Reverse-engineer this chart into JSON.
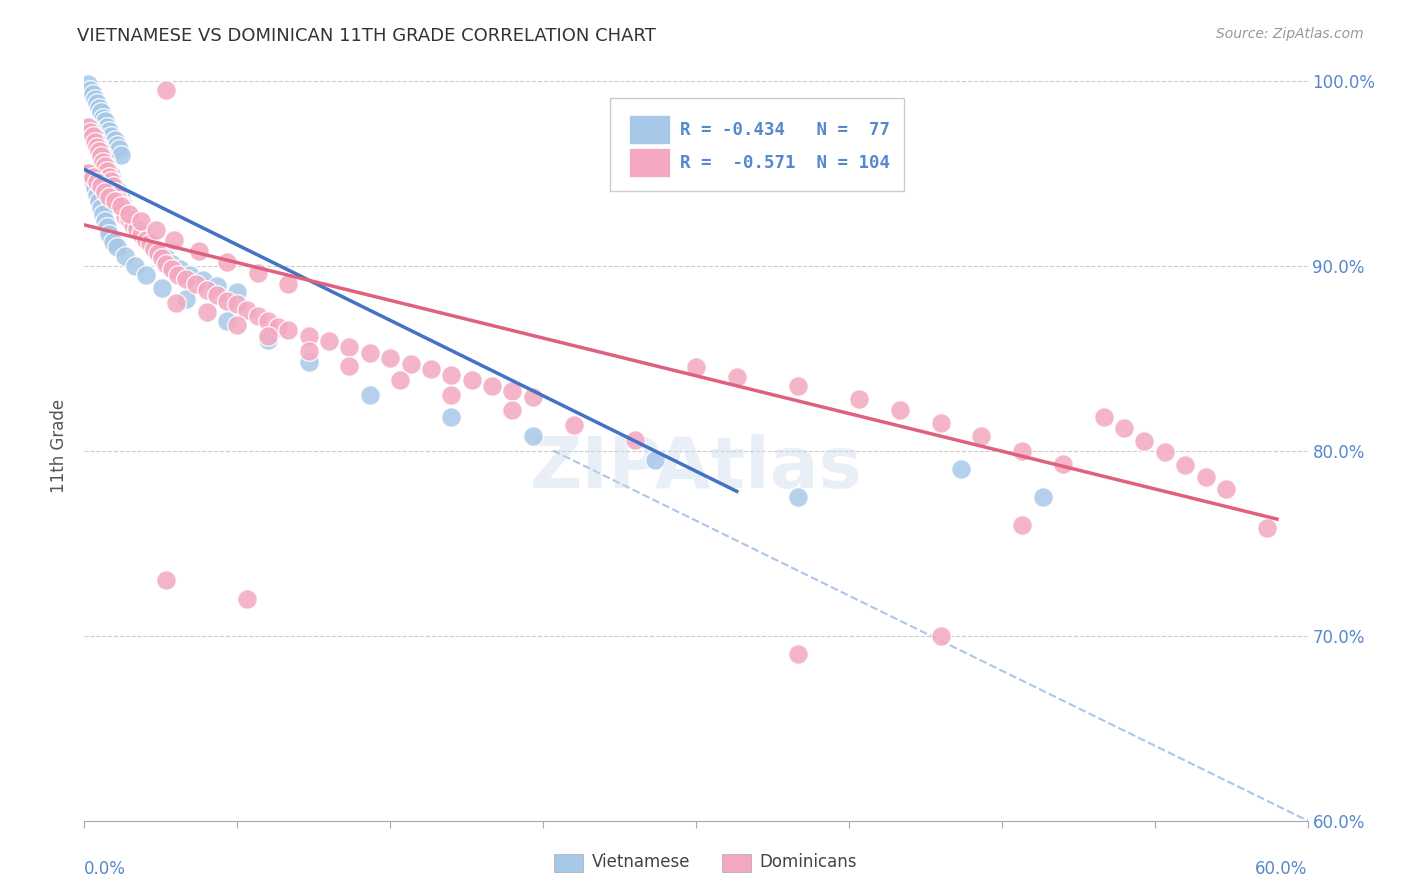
{
  "title": "VIETNAMESE VS DOMINICAN 11TH GRADE CORRELATION CHART",
  "source": "Source: ZipAtlas.com",
  "ylabel": "11th Grade",
  "xmin": 0.0,
  "xmax": 0.6,
  "ymin": 0.6,
  "ymax": 1.005,
  "legend_r_blue": "R = -0.434",
  "legend_n_blue": "N =  77",
  "legend_r_pink": "R =  -0.571",
  "legend_n_pink": "N = 104",
  "blue_color": "#A8C8E8",
  "pink_color": "#F4A8C0",
  "blue_line_color": "#4472C4",
  "pink_line_color": "#E06080",
  "blue_scatter": [
    [
      0.002,
      0.998
    ],
    [
      0.003,
      0.995
    ],
    [
      0.004,
      0.993
    ],
    [
      0.005,
      0.99
    ],
    [
      0.006,
      0.988
    ],
    [
      0.007,
      0.985
    ],
    [
      0.008,
      0.983
    ],
    [
      0.009,
      0.98
    ],
    [
      0.01,
      0.978
    ],
    [
      0.011,
      0.975
    ],
    [
      0.012,
      0.973
    ],
    [
      0.013,
      0.97
    ],
    [
      0.015,
      0.968
    ],
    [
      0.016,
      0.965
    ],
    [
      0.017,
      0.963
    ],
    [
      0.018,
      0.96
    ],
    [
      0.003,
      0.975
    ],
    [
      0.004,
      0.972
    ],
    [
      0.005,
      0.97
    ],
    [
      0.006,
      0.967
    ],
    [
      0.007,
      0.964
    ],
    [
      0.008,
      0.962
    ],
    [
      0.009,
      0.959
    ],
    [
      0.01,
      0.957
    ],
    [
      0.011,
      0.954
    ],
    [
      0.012,
      0.951
    ],
    [
      0.013,
      0.949
    ],
    [
      0.014,
      0.946
    ],
    [
      0.015,
      0.943
    ],
    [
      0.016,
      0.941
    ],
    [
      0.017,
      0.938
    ],
    [
      0.018,
      0.936
    ],
    [
      0.019,
      0.933
    ],
    [
      0.02,
      0.93
    ],
    [
      0.022,
      0.928
    ],
    [
      0.023,
      0.925
    ],
    [
      0.025,
      0.922
    ],
    [
      0.027,
      0.92
    ],
    [
      0.029,
      0.917
    ],
    [
      0.031,
      0.914
    ],
    [
      0.033,
      0.912
    ],
    [
      0.035,
      0.909
    ],
    [
      0.037,
      0.906
    ],
    [
      0.04,
      0.904
    ],
    [
      0.043,
      0.901
    ],
    [
      0.047,
      0.898
    ],
    [
      0.052,
      0.895
    ],
    [
      0.058,
      0.892
    ],
    [
      0.065,
      0.889
    ],
    [
      0.075,
      0.886
    ],
    [
      0.003,
      0.95
    ],
    [
      0.004,
      0.945
    ],
    [
      0.005,
      0.942
    ],
    [
      0.006,
      0.938
    ],
    [
      0.007,
      0.935
    ],
    [
      0.008,
      0.931
    ],
    [
      0.009,
      0.928
    ],
    [
      0.01,
      0.924
    ],
    [
      0.011,
      0.921
    ],
    [
      0.012,
      0.917
    ],
    [
      0.014,
      0.913
    ],
    [
      0.016,
      0.91
    ],
    [
      0.02,
      0.905
    ],
    [
      0.025,
      0.9
    ],
    [
      0.03,
      0.895
    ],
    [
      0.038,
      0.888
    ],
    [
      0.05,
      0.882
    ],
    [
      0.07,
      0.87
    ],
    [
      0.09,
      0.86
    ],
    [
      0.11,
      0.848
    ],
    [
      0.14,
      0.83
    ],
    [
      0.18,
      0.818
    ],
    [
      0.22,
      0.808
    ],
    [
      0.28,
      0.795
    ],
    [
      0.35,
      0.775
    ],
    [
      0.43,
      0.79
    ],
    [
      0.47,
      0.775
    ]
  ],
  "pink_scatter": [
    [
      0.002,
      0.975
    ],
    [
      0.003,
      0.972
    ],
    [
      0.004,
      0.97
    ],
    [
      0.005,
      0.967
    ],
    [
      0.006,
      0.964
    ],
    [
      0.007,
      0.962
    ],
    [
      0.008,
      0.959
    ],
    [
      0.009,
      0.956
    ],
    [
      0.01,
      0.954
    ],
    [
      0.011,
      0.951
    ],
    [
      0.012,
      0.948
    ],
    [
      0.013,
      0.946
    ],
    [
      0.014,
      0.943
    ],
    [
      0.015,
      0.94
    ],
    [
      0.016,
      0.938
    ],
    [
      0.017,
      0.935
    ],
    [
      0.018,
      0.933
    ],
    [
      0.019,
      0.93
    ],
    [
      0.02,
      0.927
    ],
    [
      0.022,
      0.925
    ],
    [
      0.024,
      0.922
    ],
    [
      0.026,
      0.92
    ],
    [
      0.028,
      0.917
    ],
    [
      0.03,
      0.914
    ],
    [
      0.032,
      0.912
    ],
    [
      0.034,
      0.909
    ],
    [
      0.036,
      0.907
    ],
    [
      0.038,
      0.904
    ],
    [
      0.04,
      0.901
    ],
    [
      0.043,
      0.898
    ],
    [
      0.046,
      0.895
    ],
    [
      0.05,
      0.893
    ],
    [
      0.055,
      0.89
    ],
    [
      0.06,
      0.887
    ],
    [
      0.065,
      0.884
    ],
    [
      0.07,
      0.881
    ],
    [
      0.075,
      0.879
    ],
    [
      0.08,
      0.876
    ],
    [
      0.085,
      0.873
    ],
    [
      0.09,
      0.87
    ],
    [
      0.095,
      0.867
    ],
    [
      0.1,
      0.865
    ],
    [
      0.11,
      0.862
    ],
    [
      0.12,
      0.859
    ],
    [
      0.13,
      0.856
    ],
    [
      0.14,
      0.853
    ],
    [
      0.15,
      0.85
    ],
    [
      0.16,
      0.847
    ],
    [
      0.17,
      0.844
    ],
    [
      0.18,
      0.841
    ],
    [
      0.19,
      0.838
    ],
    [
      0.2,
      0.835
    ],
    [
      0.21,
      0.832
    ],
    [
      0.22,
      0.829
    ],
    [
      0.002,
      0.95
    ],
    [
      0.004,
      0.948
    ],
    [
      0.006,
      0.945
    ],
    [
      0.008,
      0.943
    ],
    [
      0.01,
      0.94
    ],
    [
      0.012,
      0.937
    ],
    [
      0.015,
      0.935
    ],
    [
      0.018,
      0.932
    ],
    [
      0.022,
      0.928
    ],
    [
      0.028,
      0.924
    ],
    [
      0.035,
      0.919
    ],
    [
      0.044,
      0.914
    ],
    [
      0.056,
      0.908
    ],
    [
      0.07,
      0.902
    ],
    [
      0.085,
      0.896
    ],
    [
      0.1,
      0.89
    ],
    [
      0.04,
      0.995
    ],
    [
      0.045,
      0.88
    ],
    [
      0.06,
      0.875
    ],
    [
      0.075,
      0.868
    ],
    [
      0.09,
      0.862
    ],
    [
      0.11,
      0.854
    ],
    [
      0.13,
      0.846
    ],
    [
      0.155,
      0.838
    ],
    [
      0.18,
      0.83
    ],
    [
      0.21,
      0.822
    ],
    [
      0.24,
      0.814
    ],
    [
      0.27,
      0.806
    ],
    [
      0.3,
      0.845
    ],
    [
      0.32,
      0.84
    ],
    [
      0.35,
      0.835
    ],
    [
      0.38,
      0.828
    ],
    [
      0.4,
      0.822
    ],
    [
      0.42,
      0.815
    ],
    [
      0.44,
      0.808
    ],
    [
      0.46,
      0.8
    ],
    [
      0.48,
      0.793
    ],
    [
      0.5,
      0.818
    ],
    [
      0.51,
      0.812
    ],
    [
      0.52,
      0.805
    ],
    [
      0.53,
      0.799
    ],
    [
      0.54,
      0.792
    ],
    [
      0.55,
      0.786
    ],
    [
      0.56,
      0.779
    ],
    [
      0.04,
      0.73
    ],
    [
      0.08,
      0.72
    ],
    [
      0.35,
      0.69
    ],
    [
      0.42,
      0.7
    ],
    [
      0.46,
      0.76
    ],
    [
      0.58,
      0.758
    ]
  ],
  "blue_line_x": [
    0.0,
    0.32
  ],
  "blue_line_y": [
    0.952,
    0.778
  ],
  "pink_line_x": [
    0.0,
    0.585
  ],
  "pink_line_y": [
    0.922,
    0.763
  ],
  "diag_line_x": [
    0.23,
    0.6
  ],
  "diag_line_y": [
    0.8,
    0.6
  ],
  "yticks": [
    0.6,
    0.7,
    0.8,
    0.9,
    1.0
  ],
  "ytick_labels": [
    "60.0%",
    "70.0%",
    "80.0%",
    "90.0%",
    "100.0%"
  ],
  "xticks_count": 9,
  "right_axis_color": "#5588CC",
  "watermark": "ZIPAtlas",
  "bg_color": "#FFFFFF",
  "grid_color": "#CCCCCC"
}
